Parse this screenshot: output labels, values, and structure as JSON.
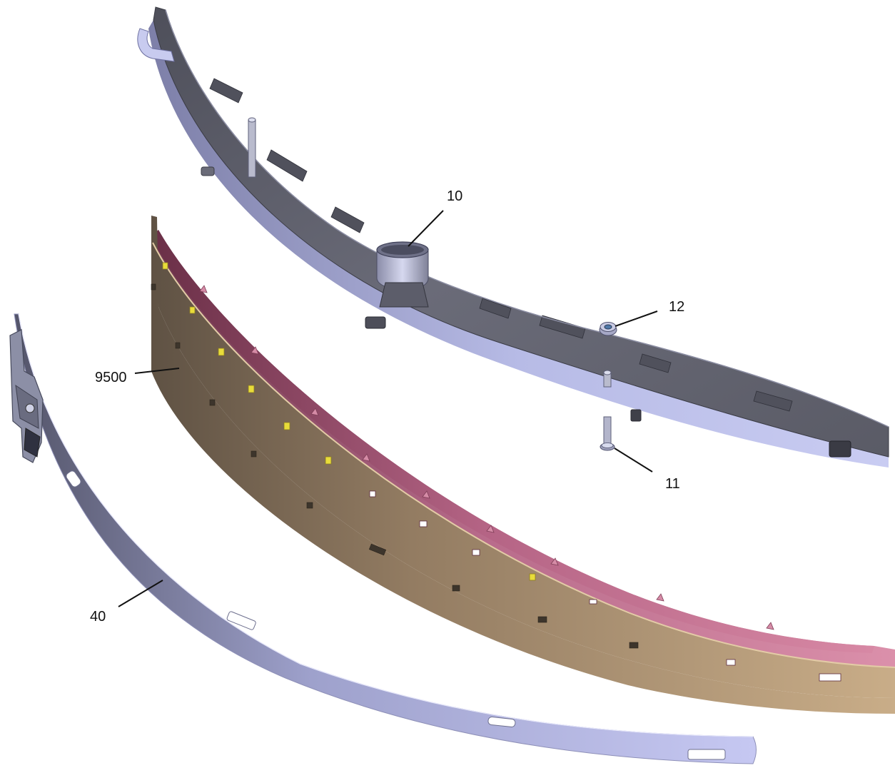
{
  "callouts": {
    "c10": "10",
    "c12": "12",
    "c11": "11",
    "c9500": "9500",
    "c40": "40"
  },
  "colors": {
    "housing_dark": "#5e5f6a",
    "housing_light": "#b9bde6",
    "blade_tan": "#c7ab86",
    "blade_pink": "#c0708e",
    "strip_lavender": "#c4c6ef",
    "window_yellow": "#e8dc3a"
  }
}
